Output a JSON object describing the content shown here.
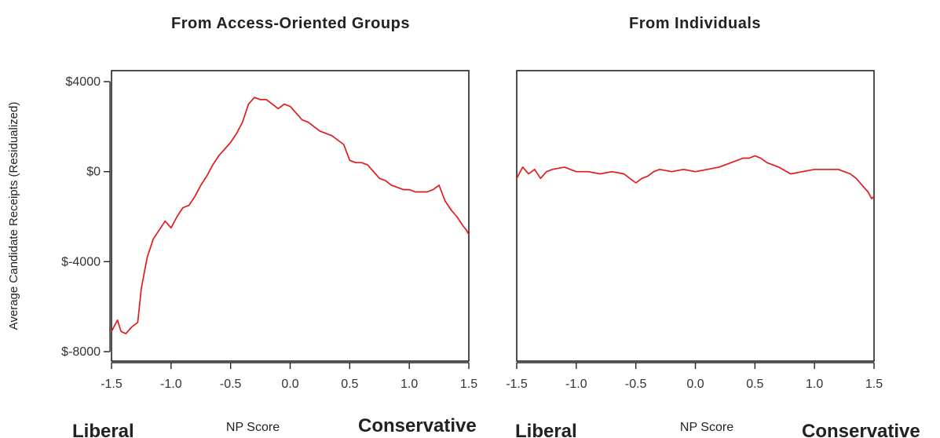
{
  "figure": {
    "ylabel": "Average Candidate Receipts (Residualized)",
    "xlabel": "NP Score",
    "left_end_label": "Liberal",
    "right_end_label": "Conservative"
  },
  "chart_data": [
    {
      "type": "line",
      "title": "From Access-Oriented Groups",
      "xlabel": "NP Score",
      "ylabel": "Average Candidate Receipts (Residualized)",
      "xlim": [
        -1.5,
        1.5
      ],
      "ylim": [
        -8000,
        4000
      ],
      "xticks": [
        -1.5,
        -1.0,
        -0.5,
        0.0,
        0.5,
        1.0,
        1.5
      ],
      "xtick_labels": [
        "-1.5",
        "-1.0",
        "-0.5",
        "0.0",
        "0.5",
        "1.0",
        "1.5"
      ],
      "yticks": [
        4000,
        0,
        -4000,
        -8000
      ],
      "ytick_labels": [
        "$4000",
        "$0",
        "$-4000",
        "$-8000"
      ],
      "grid": false,
      "series": [
        {
          "color": "#e31a1c",
          "x": [
            -1.5,
            -1.45,
            -1.42,
            -1.38,
            -1.33,
            -1.28,
            -1.25,
            -1.2,
            -1.15,
            -1.1,
            -1.05,
            -1.0,
            -0.95,
            -0.9,
            -0.85,
            -0.8,
            -0.75,
            -0.7,
            -0.65,
            -0.6,
            -0.55,
            -0.5,
            -0.45,
            -0.4,
            -0.35,
            -0.3,
            -0.25,
            -0.2,
            -0.15,
            -0.1,
            -0.05,
            0.0,
            0.05,
            0.1,
            0.15,
            0.2,
            0.25,
            0.3,
            0.35,
            0.4,
            0.45,
            0.5,
            0.55,
            0.6,
            0.65,
            0.7,
            0.75,
            0.8,
            0.85,
            0.9,
            0.95,
            1.0,
            1.05,
            1.1,
            1.15,
            1.2,
            1.25,
            1.3,
            1.35,
            1.4,
            1.45,
            1.48,
            1.5
          ],
          "y": [
            -7100,
            -6600,
            -7100,
            -7200,
            -6900,
            -6700,
            -5200,
            -3800,
            -3000,
            -2600,
            -2200,
            -2500,
            -2000,
            -1600,
            -1500,
            -1100,
            -600,
            -200,
            300,
            700,
            1000,
            1300,
            1700,
            2200,
            3000,
            3300,
            3200,
            3200,
            3000,
            2800,
            3000,
            2900,
            2600,
            2300,
            2200,
            2000,
            1800,
            1700,
            1600,
            1400,
            1200,
            500,
            400,
            400,
            300,
            0,
            -300,
            -400,
            -600,
            -700,
            -800,
            -800,
            -900,
            -900,
            -900,
            -800,
            -600,
            -1300,
            -1700,
            -2000,
            -2400,
            -2600,
            -2800
          ]
        }
      ]
    },
    {
      "type": "line",
      "title": "From Individuals",
      "xlabel": "NP Score",
      "xlim": [
        -1.5,
        1.5
      ],
      "ylim": [
        -8000,
        4000
      ],
      "xticks": [
        -1.5,
        -1.0,
        -0.5,
        0.0,
        0.5,
        1.0,
        1.5
      ],
      "xtick_labels": [
        "-1.5",
        "-1.0",
        "-0.5",
        "0.0",
        "0.5",
        "1.0",
        "1.5"
      ],
      "grid": false,
      "series": [
        {
          "color": "#e31a1c",
          "x": [
            -1.5,
            -1.45,
            -1.4,
            -1.35,
            -1.3,
            -1.25,
            -1.2,
            -1.1,
            -1.0,
            -0.9,
            -0.8,
            -0.7,
            -0.6,
            -0.55,
            -0.5,
            -0.45,
            -0.4,
            -0.35,
            -0.3,
            -0.2,
            -0.1,
            0.0,
            0.1,
            0.2,
            0.3,
            0.4,
            0.45,
            0.5,
            0.55,
            0.6,
            0.7,
            0.8,
            0.9,
            1.0,
            1.1,
            1.2,
            1.25,
            1.3,
            1.35,
            1.4,
            1.45,
            1.48,
            1.5
          ],
          "y": [
            -300,
            200,
            -100,
            100,
            -300,
            0,
            100,
            200,
            0,
            0,
            -100,
            0,
            -100,
            -300,
            -500,
            -300,
            -200,
            0,
            100,
            0,
            100,
            0,
            100,
            200,
            400,
            600,
            600,
            700,
            600,
            400,
            200,
            -100,
            0,
            100,
            100,
            100,
            0,
            -100,
            -300,
            -600,
            -900,
            -1200,
            -1100
          ]
        }
      ]
    }
  ]
}
